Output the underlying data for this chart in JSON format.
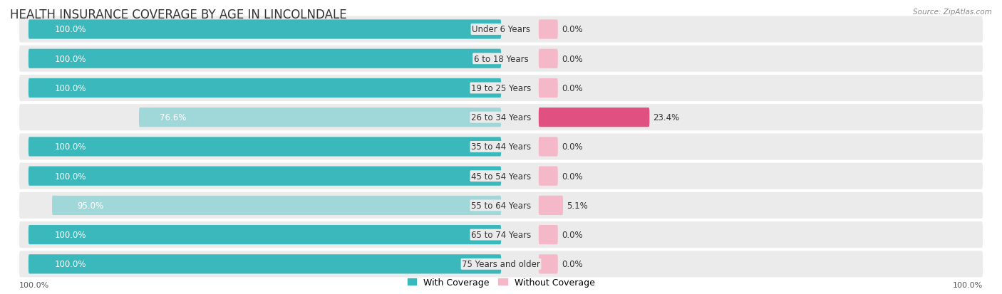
{
  "title": "HEALTH INSURANCE COVERAGE BY AGE IN LINCOLNDALE",
  "source": "Source: ZipAtlas.com",
  "categories": [
    "Under 6 Years",
    "6 to 18 Years",
    "19 to 25 Years",
    "26 to 34 Years",
    "35 to 44 Years",
    "45 to 54 Years",
    "55 to 64 Years",
    "65 to 74 Years",
    "75 Years and older"
  ],
  "with_coverage": [
    100.0,
    100.0,
    100.0,
    76.6,
    100.0,
    100.0,
    95.0,
    100.0,
    100.0
  ],
  "without_coverage": [
    0.0,
    0.0,
    0.0,
    23.4,
    0.0,
    0.0,
    5.1,
    0.0,
    0.0
  ],
  "color_with": "#3ab8bb",
  "color_with_light": "#a0d8da",
  "color_without_light": "#f4b8c8",
  "color_without_dark": "#e05080",
  "row_bg_color": "#ebebeb",
  "background_color": "#ffffff",
  "title_fontsize": 12,
  "label_fontsize": 8.5,
  "legend_fontsize": 9,
  "axis_label_fontsize": 8
}
